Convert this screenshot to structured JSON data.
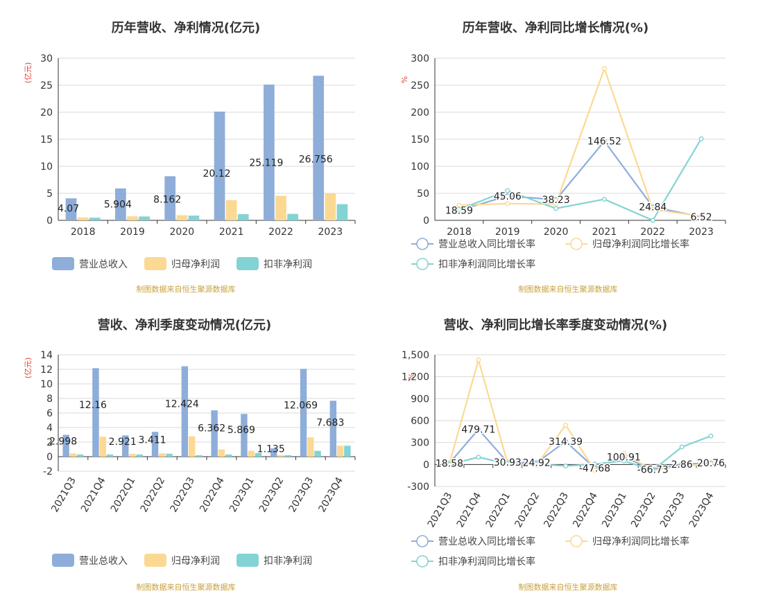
{
  "colors": {
    "revenue": "#8eadd9",
    "netprofit": "#fcd992",
    "deducted": "#84d3d4",
    "grid": "#d9d9d9",
    "unit": "#e0443e",
    "source": "#c9a13b"
  },
  "chart_data": [
    {
      "id": "annual-amounts",
      "type": "bar",
      "title": "历年营收、净利情况(亿元)",
      "ylabel": "(亿元)",
      "categories": [
        "2018",
        "2019",
        "2020",
        "2021",
        "2022",
        "2023"
      ],
      "ylim": [
        0,
        30
      ],
      "yticks": [
        "0",
        "5",
        "10",
        "15",
        "20",
        "25",
        "30"
      ],
      "yticks_values": [
        0,
        5,
        10,
        15,
        20,
        25,
        30
      ],
      "series": [
        {
          "name": "营业总收入",
          "color_key": "revenue",
          "values": [
            4.07,
            5.904,
            8.162,
            20.12,
            25.119,
            26.756
          ],
          "labels": [
            "4.07",
            "5.904",
            "8.162",
            "20.12",
            "25.119",
            "26.756"
          ]
        },
        {
          "name": "归母净利润",
          "color_key": "netprofit",
          "values": [
            0.55,
            0.75,
            0.95,
            3.75,
            4.55,
            4.95
          ]
        },
        {
          "name": "扣非净利润",
          "color_key": "deducted",
          "values": [
            0.5,
            0.72,
            0.88,
            1.15,
            1.2,
            3.0
          ]
        }
      ],
      "source": "制图数据来自恒生聚源数据库"
    },
    {
      "id": "annual-growth",
      "type": "line",
      "title": "历年营收、净利同比增长情况(%)",
      "ylabel": "%",
      "categories": [
        "2018",
        "2019",
        "2020",
        "2021",
        "2022",
        "2023"
      ],
      "ylim": [
        0,
        300
      ],
      "yticks": [
        "0",
        "50",
        "100",
        "150",
        "200",
        "250",
        "300"
      ],
      "yticks_values": [
        0,
        50,
        100,
        150,
        200,
        250,
        300
      ],
      "series": [
        {
          "name": "营业总收入同比增长率",
          "color_key": "revenue",
          "values": [
            18.59,
            45.06,
            38.23,
            146.52,
            24.84,
            6.52
          ],
          "labels": [
            "18.59",
            "45.06",
            "38.23",
            "146.52",
            "24.84",
            "6.52"
          ]
        },
        {
          "name": "归母净利润同比增长率",
          "color_key": "netprofit",
          "values": [
            28,
            31,
            30,
            281,
            20,
            8
          ]
        },
        {
          "name": "扣非净利润同比增长率",
          "color_key": "deducted",
          "values": [
            20,
            55,
            22,
            39,
            0,
            151
          ]
        }
      ],
      "source": "制图数据来自恒生聚源数据库"
    },
    {
      "id": "quarterly-amounts",
      "type": "bar",
      "title": "营收、净利季度变动情况(亿元)",
      "ylabel": "(亿元)",
      "categories": [
        "2021Q3",
        "2021Q4",
        "2022Q1",
        "2022Q2",
        "2022Q3",
        "2022Q4",
        "2023Q1",
        "2023Q2",
        "2023Q3",
        "2023Q4"
      ],
      "ylim": [
        -2,
        14
      ],
      "yticks": [
        "-2",
        "0",
        "2",
        "4",
        "6",
        "8",
        "10",
        "12",
        "14"
      ],
      "yticks_values": [
        -2,
        0,
        2,
        4,
        6,
        8,
        10,
        12,
        14
      ],
      "series": [
        {
          "name": "营业总收入",
          "color_key": "revenue",
          "values": [
            2.998,
            12.16,
            2.921,
            3.411,
            12.424,
            6.362,
            5.869,
            1.135,
            12.069,
            7.683
          ],
          "labels": [
            "2.998",
            "12.16",
            "2.921",
            "3.411",
            "12.424",
            "6.362",
            "5.869",
            "1.135",
            "12.069",
            "7.683"
          ]
        },
        {
          "name": "归母净利润",
          "color_key": "netprofit",
          "values": [
            0.45,
            2.75,
            0.4,
            0.45,
            2.8,
            1.0,
            0.8,
            0.2,
            2.65,
            1.5
          ]
        },
        {
          "name": "扣非净利润",
          "color_key": "deducted",
          "values": [
            0.3,
            0.3,
            0.3,
            0.4,
            0.2,
            0.3,
            0.5,
            0.2,
            0.8,
            1.5
          ]
        }
      ],
      "source": "制图数据来自恒生聚源数据库"
    },
    {
      "id": "quarterly-growth",
      "type": "line",
      "title": "营收、净利同比增长率季度变动情况(%)",
      "ylabel": "%",
      "categories": [
        "2021Q3",
        "2021Q4",
        "2022Q1",
        "2022Q2",
        "2022Q3",
        "2022Q4",
        "2023Q1",
        "2023Q2",
        "2023Q3",
        "2023Q4"
      ],
      "ylim": [
        -300,
        1500
      ],
      "yticks": [
        "-300",
        "0",
        "300",
        "600",
        "900",
        "1,200",
        "1,500"
      ],
      "yticks_values": [
        -300,
        0,
        300,
        600,
        900,
        1200,
        1500
      ],
      "series": [
        {
          "name": "营业总收入同比增长率",
          "color_key": "revenue",
          "values": [
            18.58,
            479.71,
            30.93,
            24.92,
            314.39,
            -47.68,
            100.91,
            -66.73,
            2.86,
            20.76
          ],
          "labels": [
            "18.58",
            "479.71",
            "30.93",
            "24.92",
            "314.39",
            "-47.68",
            "100.91",
            "-66.73",
            "2.86",
            "20.76"
          ]
        },
        {
          "name": "归母净利润同比增长率",
          "color_key": "netprofit",
          "values": [
            10,
            1430,
            20,
            -10,
            540,
            -80,
            150,
            -80,
            -20,
            10
          ]
        },
        {
          "name": "扣非净利润同比增长率",
          "color_key": "deducted",
          "values": [
            0,
            100,
            10,
            5,
            -20,
            5,
            50,
            -80,
            240,
            390
          ]
        }
      ],
      "source": "制图数据来自恒生聚源数据库"
    }
  ]
}
